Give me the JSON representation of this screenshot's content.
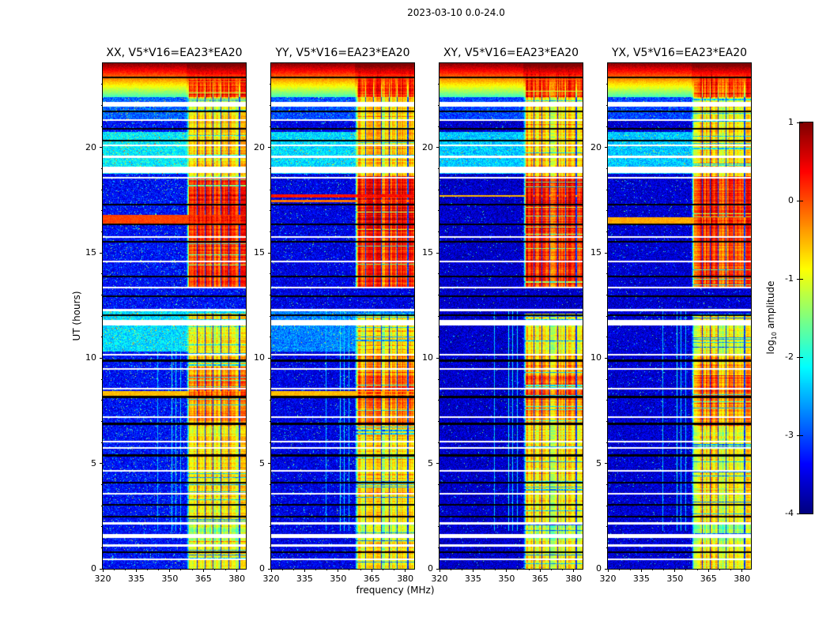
{
  "chart_data": {
    "type": "heatmap",
    "title": "2023-03-10 0.0-24.0",
    "xlabel": "frequency (MHz)",
    "ylabel": "UT (hours)",
    "colormap": "jet",
    "xlim": [
      320,
      384
    ],
    "ylim": [
      0,
      24
    ],
    "clim": [
      -4,
      1
    ],
    "xticks": [
      320,
      335,
      350,
      365,
      380
    ],
    "yticks": [
      0,
      5,
      10,
      15,
      20
    ],
    "x_minor_step": 5,
    "y_minor_step": 1,
    "colorbar": {
      "label_pre": "log",
      "label_sub": "10",
      "label_post": " amplitude",
      "ticks": [
        "1",
        "0",
        "-1",
        "-2",
        "-3",
        "-4"
      ],
      "tick_values": [
        1,
        0,
        -1,
        -2,
        -3,
        -4
      ]
    },
    "panels": [
      {
        "title": "XX, V5*V16=EA23*EA20",
        "seed": 11,
        "background_level": -3.35,
        "speckle": 0.045,
        "cyan_bands": [
          [
            18.75,
            20.75,
            -2.2
          ],
          [
            10.3,
            12.25,
            -2.3
          ],
          [
            21.3,
            22.4,
            -2.9
          ]
        ],
        "bright_rows": [
          [
            16.55,
            0.5,
            0.05
          ],
          [
            8.3,
            0.3,
            -0.55
          ]
        ]
      },
      {
        "title": "YY, V5*V16=EA23*EA20",
        "seed": 23,
        "background_level": -3.5,
        "speckle": 0.03,
        "cyan_bands": [
          [
            18.75,
            20.75,
            -2.3
          ],
          [
            10.3,
            12.25,
            -2.75
          ],
          [
            21.3,
            22.4,
            -3.0
          ]
        ],
        "bright_rows": [
          [
            17.7,
            0.14,
            0.3
          ],
          [
            17.45,
            0.1,
            -0.2
          ],
          [
            8.3,
            0.3,
            -0.55
          ]
        ]
      },
      {
        "title": "XY, V5*V16=EA23*EA20",
        "seed": 37,
        "background_level": -3.65,
        "speckle": 0.015,
        "cyan_bands": [
          [
            18.75,
            20.75,
            -2.4
          ],
          [
            21.3,
            22.4,
            -3.05
          ]
        ],
        "bright_rows": [
          [
            17.7,
            0.1,
            -0.5
          ]
        ]
      },
      {
        "title": "YX, V5*V16=EA23*EA20",
        "seed": 53,
        "background_level": -3.6,
        "speckle": 0.02,
        "cyan_bands": [
          [
            18.75,
            20.75,
            -2.4
          ],
          [
            21.3,
            22.4,
            -3.05
          ]
        ],
        "bright_rows": [
          [
            16.55,
            0.3,
            -0.45
          ]
        ]
      }
    ],
    "shared_features": {
      "band": {
        "f_start": 357.5,
        "edge_mhz": 1.2,
        "gaps": [
          362.3,
          365.8,
          369.3,
          372.8,
          376.3,
          381.2
        ],
        "gap_halfwidth": 0.22
      },
      "band_profile": [
        [
          0,
          1.3,
          -0.9
        ],
        [
          1.3,
          2.1,
          -1.3
        ],
        [
          2.1,
          6.8,
          -0.85
        ],
        [
          6.8,
          8,
          -0.4
        ],
        [
          8,
          9.2,
          -0.15
        ],
        [
          9.2,
          10.2,
          -0.55
        ],
        [
          10.2,
          12.1,
          -0.95
        ],
        [
          12.1,
          13.35,
          -9
        ],
        [
          13.35,
          16,
          0.05
        ],
        [
          16,
          18.65,
          0.2
        ],
        [
          18.65,
          21.3,
          -0.75
        ],
        [
          21.3,
          22.4,
          -0.85
        ],
        [
          22.4,
          24,
          0.1
        ]
      ],
      "burst": {
        "h_start": 22.4,
        "level_bottom": -1.8,
        "level_top": 1.0
      },
      "vlines": [
        [
          344.6,
          0.45
        ],
        [
          350.9,
          1.0
        ],
        [
          352.7,
          0.7
        ],
        [
          354.9,
          0.5
        ]
      ],
      "vline_hours": [
        1.8,
        12.25
      ],
      "stripes_white": [
        [
          22.05,
          0.22
        ],
        [
          21.3,
          0.08
        ],
        [
          20.1,
          0.07
        ],
        [
          19.55,
          0.12
        ],
        [
          18.95,
          0.3
        ],
        [
          18.55,
          0.07
        ],
        [
          15.75,
          0.07
        ],
        [
          14.6,
          0.07
        ],
        [
          13.35,
          0.07
        ],
        [
          12.3,
          0.1
        ],
        [
          11.68,
          0.28
        ],
        [
          10.15,
          0.07
        ],
        [
          9.5,
          0.07
        ],
        [
          8.55,
          0.07
        ],
        [
          7.2,
          0.07
        ],
        [
          6.05,
          0.07
        ],
        [
          5.75,
          0.07
        ],
        [
          4.65,
          0.07
        ],
        [
          3.55,
          0.07
        ],
        [
          2.15,
          0.1
        ],
        [
          1.55,
          0.18
        ],
        [
          1.1,
          0.12
        ],
        [
          0.45,
          0.07
        ]
      ],
      "stripes_black": [
        [
          23.35,
          0.06
        ],
        [
          21.7,
          0.09
        ],
        [
          20.9,
          0.06
        ],
        [
          20.35,
          0.06
        ],
        [
          17.3,
          0.06
        ],
        [
          16.35,
          0.06
        ],
        [
          15.5,
          0.09
        ],
        [
          13.9,
          0.06
        ],
        [
          12.95,
          0.06
        ],
        [
          12.05,
          0.06
        ],
        [
          9.9,
          0.11
        ],
        [
          8.15,
          0.12
        ],
        [
          6.9,
          0.11
        ],
        [
          5.4,
          0.1
        ],
        [
          4.1,
          0.06
        ],
        [
          3.05,
          0.06
        ],
        [
          2.5,
          0.06
        ],
        [
          0.8,
          0.06
        ]
      ]
    }
  }
}
